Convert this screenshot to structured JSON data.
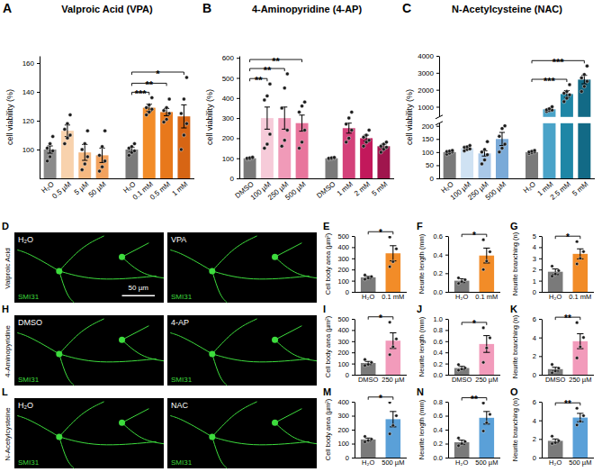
{
  "chart_data": [
    {
      "panel": "A",
      "type": "bar",
      "title": "Valproic Acid (VPA)",
      "y_label": "cell viability (%)",
      "categories": [
        "H₂O",
        "0.5 µM",
        "5 µM",
        "50 µM",
        "H₂O",
        "0.1 mM",
        "0.5 mM",
        "1 mM"
      ],
      "values": [
        100,
        113,
        98,
        96,
        100,
        129,
        126,
        123
      ],
      "errors": [
        2.5,
        4,
        5.5,
        5,
        1.5,
        2.5,
        2.5,
        8
      ],
      "points": [
        [
          92,
          95,
          99,
          101,
          104,
          109
        ],
        [
          104,
          108,
          110,
          114,
          118,
          124
        ],
        [
          86,
          90,
          95,
          100,
          104,
          113
        ],
        [
          85,
          88,
          92,
          96,
          102,
          113
        ],
        [
          96,
          98,
          99,
          101,
          102,
          104
        ],
        [
          124,
          126,
          128,
          129,
          131,
          136
        ],
        [
          119,
          121,
          125,
          127,
          129,
          135
        ],
        [
          100,
          110,
          118,
          125,
          135,
          150
        ]
      ],
      "colors": [
        "#8a8a8a",
        "#f8d2ad",
        "#f5b982",
        "#f2a25e",
        "#7a7a7a",
        "#f28c28",
        "#e8781b",
        "#d76514"
      ],
      "ylim": [
        80,
        165
      ],
      "yticks": [
        100,
        120,
        140,
        160
      ],
      "significance": [
        {
          "from": 4,
          "to": 5,
          "label": "***"
        },
        {
          "from": 4,
          "to": 6,
          "label": "**"
        },
        {
          "from": 4,
          "to": 7,
          "label": "*"
        }
      ]
    },
    {
      "panel": "B",
      "type": "bar",
      "title": "4-Aminopyridine (4-AP)",
      "y_label": "cell viability (%)",
      "categories": [
        "DMSO",
        "100 µM",
        "250 µM",
        "500 µM",
        "DMSO",
        "1 mM",
        "2 mM",
        "5 mM"
      ],
      "values": [
        100,
        300,
        300,
        275,
        100,
        250,
        200,
        160
      ],
      "errors": [
        3,
        55,
        55,
        40,
        2,
        25,
        15,
        10
      ],
      "points": [
        [
          95,
          97,
          100,
          100,
          102,
          105
        ],
        [
          150,
          170,
          220,
          390,
          410,
          470
        ],
        [
          160,
          190,
          240,
          350,
          450,
          520
        ],
        [
          150,
          180,
          240,
          330,
          360,
          380
        ],
        [
          95,
          98,
          100,
          100,
          102,
          104
        ],
        [
          180,
          200,
          240,
          270,
          300,
          330
        ],
        [
          160,
          180,
          190,
          205,
          215,
          240
        ],
        [
          130,
          145,
          155,
          160,
          170,
          180
        ]
      ],
      "colors": [
        "#7a7a7a",
        "#f6cbd9",
        "#f09ab8",
        "#e8759c",
        "#7a7a7a",
        "#d4417a",
        "#c2185b",
        "#a0154d"
      ],
      "ylim": [
        0,
        610
      ],
      "yticks": [
        0,
        100,
        200,
        300,
        400,
        500,
        600
      ],
      "significance": [
        {
          "from": 0,
          "to": 1,
          "label": "**"
        },
        {
          "from": 0,
          "to": 2,
          "label": "**"
        },
        {
          "from": 0,
          "to": 3,
          "label": "**"
        }
      ]
    },
    {
      "panel": "C",
      "type": "bar",
      "title": "N-Acetylcysteine (NAC)",
      "y_label": "cell viability (%)",
      "categories": [
        "H₂O",
        "100 µM",
        "250 µM",
        "500 µM",
        "H₂O",
        "1 mM",
        "2.5 mM",
        "5 mM"
      ],
      "values": [
        100,
        115,
        95,
        150,
        100,
        850,
        1750,
        2600
      ],
      "errors": [
        4,
        4,
        10,
        25,
        3,
        50,
        200,
        250
      ],
      "points": [
        [
          92,
          96,
          100,
          102,
          104,
          106
        ],
        [
          105,
          110,
          112,
          118,
          120,
          125
        ],
        [
          55,
          70,
          90,
          100,
          110,
          140
        ],
        [
          100,
          115,
          130,
          160,
          190,
          200
        ],
        [
          94,
          97,
          100,
          100,
          103,
          106
        ],
        [
          720,
          780,
          800,
          820,
          880,
          1000
        ],
        [
          1300,
          1500,
          1700,
          1800,
          1900,
          2300
        ],
        [
          1900,
          2200,
          2500,
          2700,
          2900,
          3400
        ]
      ],
      "colors": [
        "#7a7a7a",
        "#cfe2f3",
        "#a9c8e8",
        "#7aaad8",
        "#7a7a7a",
        "#4aa3c8",
        "#1e86a6",
        "#126a86"
      ],
      "ylim": [
        0,
        4000
      ],
      "axis_break": [
        210,
        400
      ],
      "yticks": [
        0,
        50,
        100,
        150,
        200,
        1000,
        2000,
        3000,
        4000
      ],
      "significance": [
        {
          "from": 4,
          "to": 6,
          "label": "***"
        },
        {
          "from": 4,
          "to": 7,
          "label": "***"
        }
      ]
    },
    {
      "panel": "E",
      "type": "bar",
      "y_label": "Cell body area (µm²)",
      "categories": [
        "H₂O",
        "0.1 mM"
      ],
      "values": [
        130,
        345
      ],
      "errors": [
        9,
        68
      ],
      "points": [
        [
          112,
          124,
          136,
          150
        ],
        [
          225,
          270,
          385,
          490
        ]
      ],
      "colors": [
        "#7a7a7a",
        "#f28c28"
      ],
      "ylim": [
        0,
        500
      ],
      "yticks": [
        0,
        100,
        200,
        300,
        400,
        500
      ],
      "significance": [
        {
          "from": 0,
          "to": 1,
          "label": "*"
        }
      ]
    },
    {
      "panel": "F",
      "type": "bar",
      "y_label": "Neurite length (mm)",
      "categories": [
        "H₂O",
        "0.1 mM"
      ],
      "values": [
        0.12,
        0.39
      ],
      "errors": [
        0.02,
        0.08
      ],
      "points": [
        [
          0.09,
          0.11,
          0.13,
          0.15
        ],
        [
          0.24,
          0.33,
          0.43,
          0.56
        ]
      ],
      "colors": [
        "#7a7a7a",
        "#f28c28"
      ],
      "ylim": [
        0,
        0.6
      ],
      "yticks": [
        {
          "value": 0,
          "label": "0.0"
        },
        0.2,
        0.4,
        0.6
      ],
      "significance": [
        {
          "from": 0,
          "to": 1,
          "label": "*"
        }
      ]
    },
    {
      "panel": "G",
      "type": "bar",
      "y_label": "Neurite branching (n)",
      "categories": [
        "H₂O",
        "0.1 mM"
      ],
      "values": [
        1.8,
        3.4
      ],
      "errors": [
        0.25,
        0.45
      ],
      "points": [
        [
          1.4,
          1.6,
          1.9,
          2.3
        ],
        [
          2.5,
          3.0,
          3.6,
          4.5
        ]
      ],
      "colors": [
        "#7a7a7a",
        "#f28c28"
      ],
      "ylim": [
        0,
        5
      ],
      "yticks": [
        0,
        1,
        2,
        3,
        4,
        5
      ],
      "significance": [
        {
          "from": 0,
          "to": 1,
          "label": "*"
        }
      ]
    },
    {
      "panel": "I",
      "type": "bar",
      "y_label": "Cell body area (µm²)",
      "categories": [
        "DMSO",
        "250 µM"
      ],
      "values": [
        105,
        305
      ],
      "errors": [
        14,
        70
      ],
      "points": [
        [
          82,
          92,
          110,
          136
        ],
        [
          180,
          250,
          320,
          470
        ]
      ],
      "colors": [
        "#7a7a7a",
        "#f29bbb"
      ],
      "ylim": [
        0,
        500
      ],
      "yticks": [
        0,
        100,
        200,
        300,
        400,
        500
      ],
      "significance": [
        {
          "from": 0,
          "to": 1,
          "label": "*"
        }
      ]
    },
    {
      "panel": "J",
      "type": "bar",
      "y_label": "Neurite length (mm)",
      "categories": [
        "DMSO",
        "250 µM"
      ],
      "values": [
        0.12,
        0.55
      ],
      "errors": [
        0.03,
        0.15
      ],
      "points": [
        [
          0.08,
          0.1,
          0.12,
          0.18
        ],
        [
          0.22,
          0.48,
          0.66,
          0.84
        ]
      ],
      "colors": [
        "#7a7a7a",
        "#f29bbb"
      ],
      "ylim": [
        0,
        1
      ],
      "yticks": [
        {
          "value": 0,
          "label": "0.0"
        },
        0.2,
        0.4,
        0.6,
        0.8,
        {
          "value": 1,
          "label": "1.0"
        }
      ],
      "significance": [
        {
          "from": 0,
          "to": 1,
          "label": "*"
        }
      ]
    },
    {
      "panel": "K",
      "type": "bar",
      "y_label": "Neurite branching (n)",
      "categories": [
        "DMSO",
        "250 µM"
      ],
      "values": [
        0.6,
        3.6
      ],
      "errors": [
        0.2,
        0.8
      ],
      "points": [
        [
          0.2,
          0.4,
          0.7,
          1.1
        ],
        [
          1.8,
          3.0,
          4.0,
          5.6
        ]
      ],
      "colors": [
        "#7a7a7a",
        "#f29bbb"
      ],
      "ylim": [
        0,
        6
      ],
      "yticks": [
        0,
        2,
        4,
        6
      ],
      "significance": [
        {
          "from": 0,
          "to": 1,
          "label": "**"
        }
      ]
    },
    {
      "panel": "M",
      "type": "bar",
      "y_label": "Cell body area (µm²)",
      "categories": [
        "H₂O",
        "500 µM"
      ],
      "values": [
        130,
        275
      ],
      "errors": [
        10,
        55
      ],
      "points": [
        [
          112,
          122,
          132,
          152
        ],
        [
          170,
          230,
          300,
          395
        ]
      ],
      "colors": [
        "#7a7a7a",
        "#5aa0d8"
      ],
      "ylim": [
        0,
        400
      ],
      "yticks": [
        0,
        100,
        200,
        300,
        400
      ],
      "significance": [
        {
          "from": 0,
          "to": 1,
          "label": "*"
        }
      ]
    },
    {
      "panel": "N",
      "type": "bar",
      "y_label": "Neurite length (mm)",
      "categories": [
        "H₂O",
        "500 µM"
      ],
      "values": [
        0.22,
        0.57
      ],
      "errors": [
        0.03,
        0.09
      ],
      "points": [
        [
          0.17,
          0.2,
          0.23,
          0.28
        ],
        [
          0.38,
          0.5,
          0.62,
          0.78
        ]
      ],
      "colors": [
        "#7a7a7a",
        "#5aa0d8"
      ],
      "ylim": [
        0,
        0.8
      ],
      "yticks": [
        {
          "value": 0,
          "label": "0.0"
        },
        0.2,
        0.4,
        0.6,
        0.8
      ],
      "significance": [
        {
          "from": 0,
          "to": 1,
          "label": "**"
        }
      ]
    },
    {
      "panel": "O",
      "type": "bar",
      "y_label": "Neurite branching (n)",
      "categories": [
        "H₂O",
        "500 µM"
      ],
      "values": [
        1.8,
        4.3
      ],
      "errors": [
        0.2,
        0.45
      ],
      "points": [
        [
          1.5,
          1.6,
          1.8,
          2.3
        ],
        [
          3.5,
          3.9,
          4.5,
          5.3
        ]
      ],
      "colors": [
        "#7a7a7a",
        "#5aa0d8"
      ],
      "ylim": [
        0,
        6
      ],
      "yticks": [
        0,
        2,
        4,
        6
      ],
      "significance": [
        {
          "from": 0,
          "to": 1,
          "label": "**"
        }
      ]
    }
  ],
  "image_panels": [
    {
      "panel": "D",
      "row_label": "Valproic Acid",
      "images": [
        {
          "label": "H₂O",
          "stain": "SMI31",
          "scale_bar": "50 µm"
        },
        {
          "label": "VPA",
          "stain": "SMI31"
        }
      ]
    },
    {
      "panel": "H",
      "row_label": "4-Aminopyridine",
      "images": [
        {
          "label": "DMSO",
          "stain": "SMI31"
        },
        {
          "label": "4-AP",
          "stain": "SMI31"
        }
      ]
    },
    {
      "panel": "L",
      "row_label": "N-Acetylcysteine",
      "images": [
        {
          "label": "H₂O",
          "stain": "SMI31"
        },
        {
          "label": "NAC",
          "stain": "SMI31"
        }
      ]
    }
  ]
}
